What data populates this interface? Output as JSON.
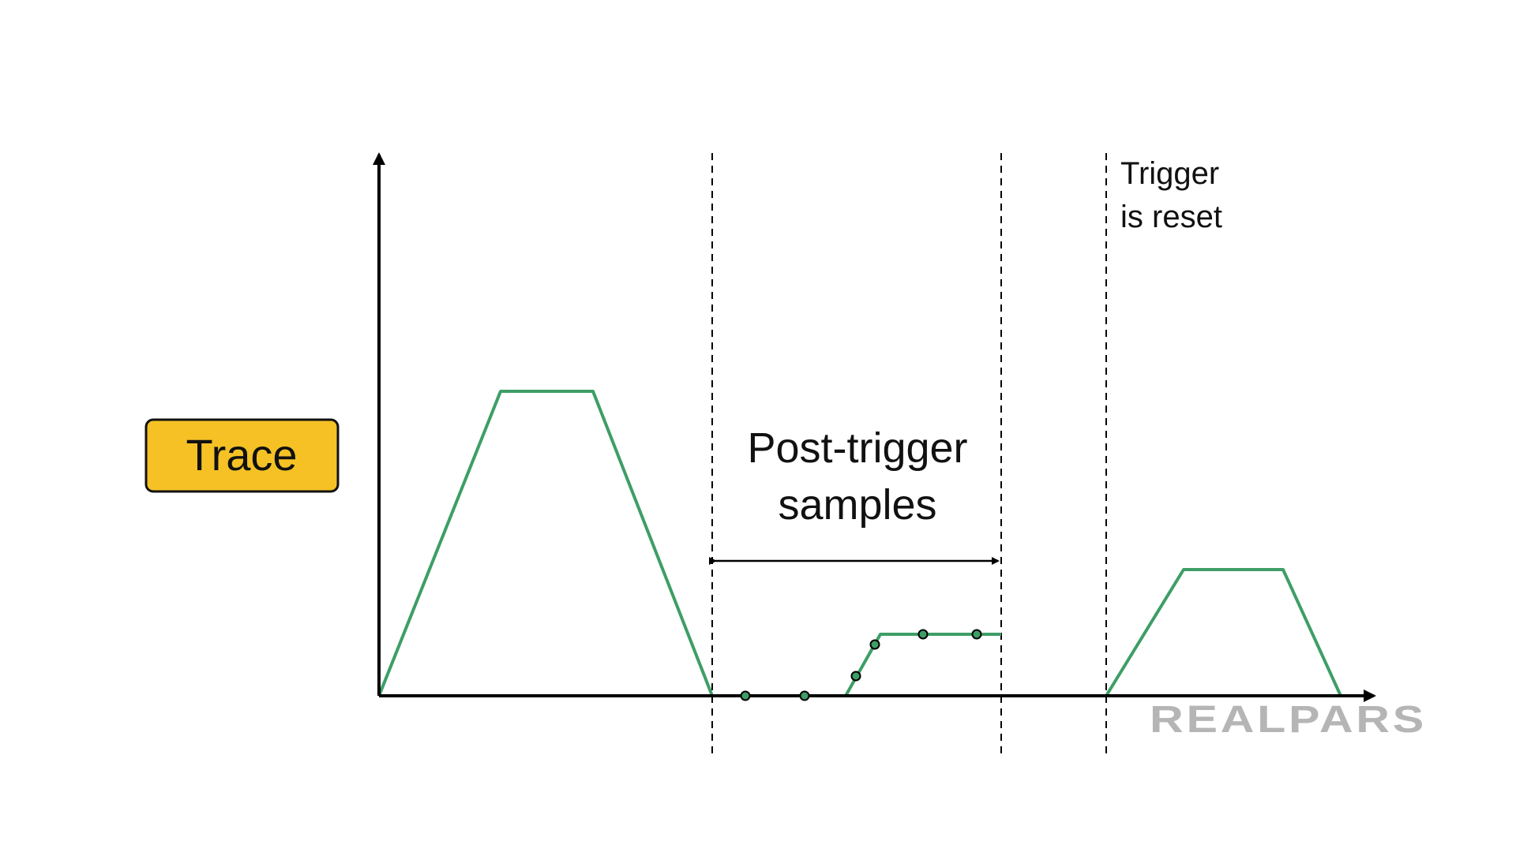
{
  "labels": {
    "trace": "Trace",
    "post_trigger": [
      "Post-trigger",
      "samples"
    ],
    "trigger_reset": [
      "Trigger",
      "is reset"
    ]
  },
  "logo": "REALPARS"
}
